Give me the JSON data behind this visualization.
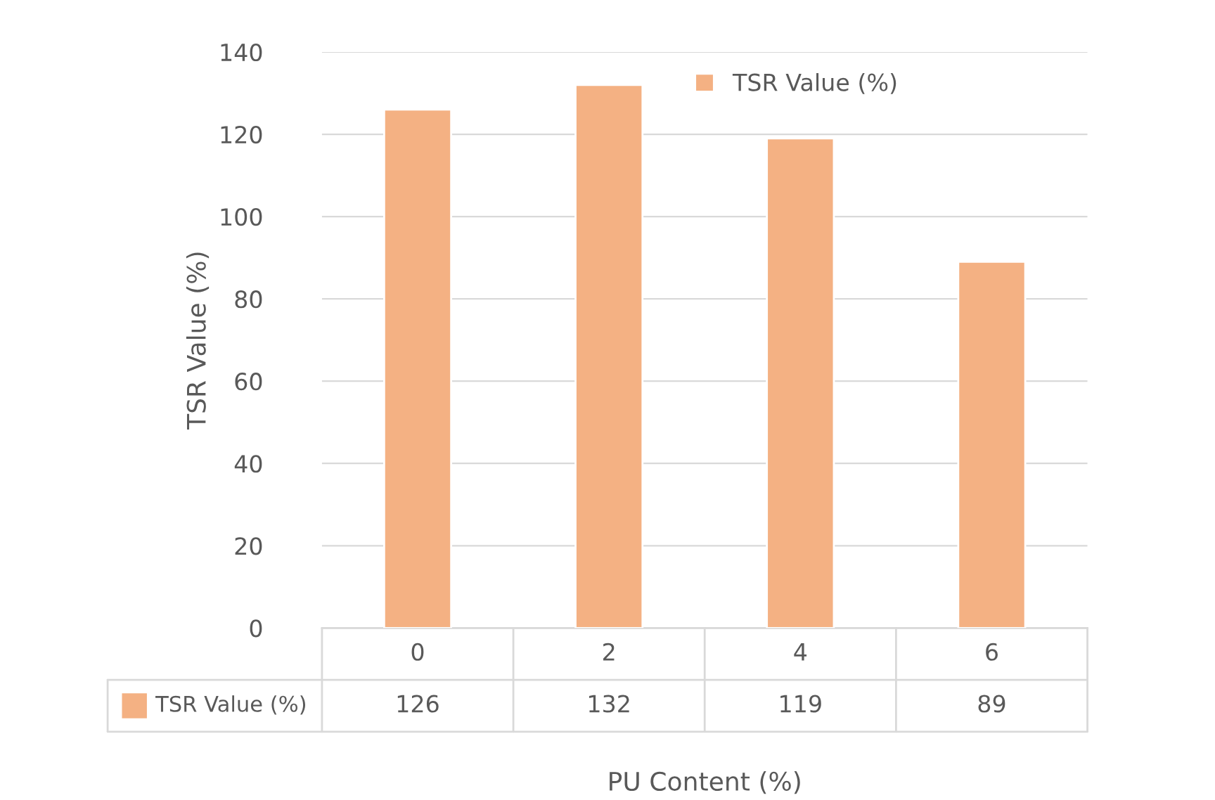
{
  "chart_data": {
    "type": "bar",
    "xlabel": "PU Content (%)",
    "ylabel": "TSR Value (%)",
    "categories": [
      "0",
      "2",
      "4",
      "6"
    ],
    "series": [
      {
        "name": "TSR Value (%)",
        "color": "#f4b183",
        "values": [
          126,
          132,
          119,
          89
        ]
      }
    ],
    "ylim": [
      0,
      140
    ],
    "yticks": [
      0,
      20,
      40,
      60,
      80,
      100,
      120,
      140
    ],
    "grid": "y",
    "legend": "top",
    "data_labels": true
  }
}
